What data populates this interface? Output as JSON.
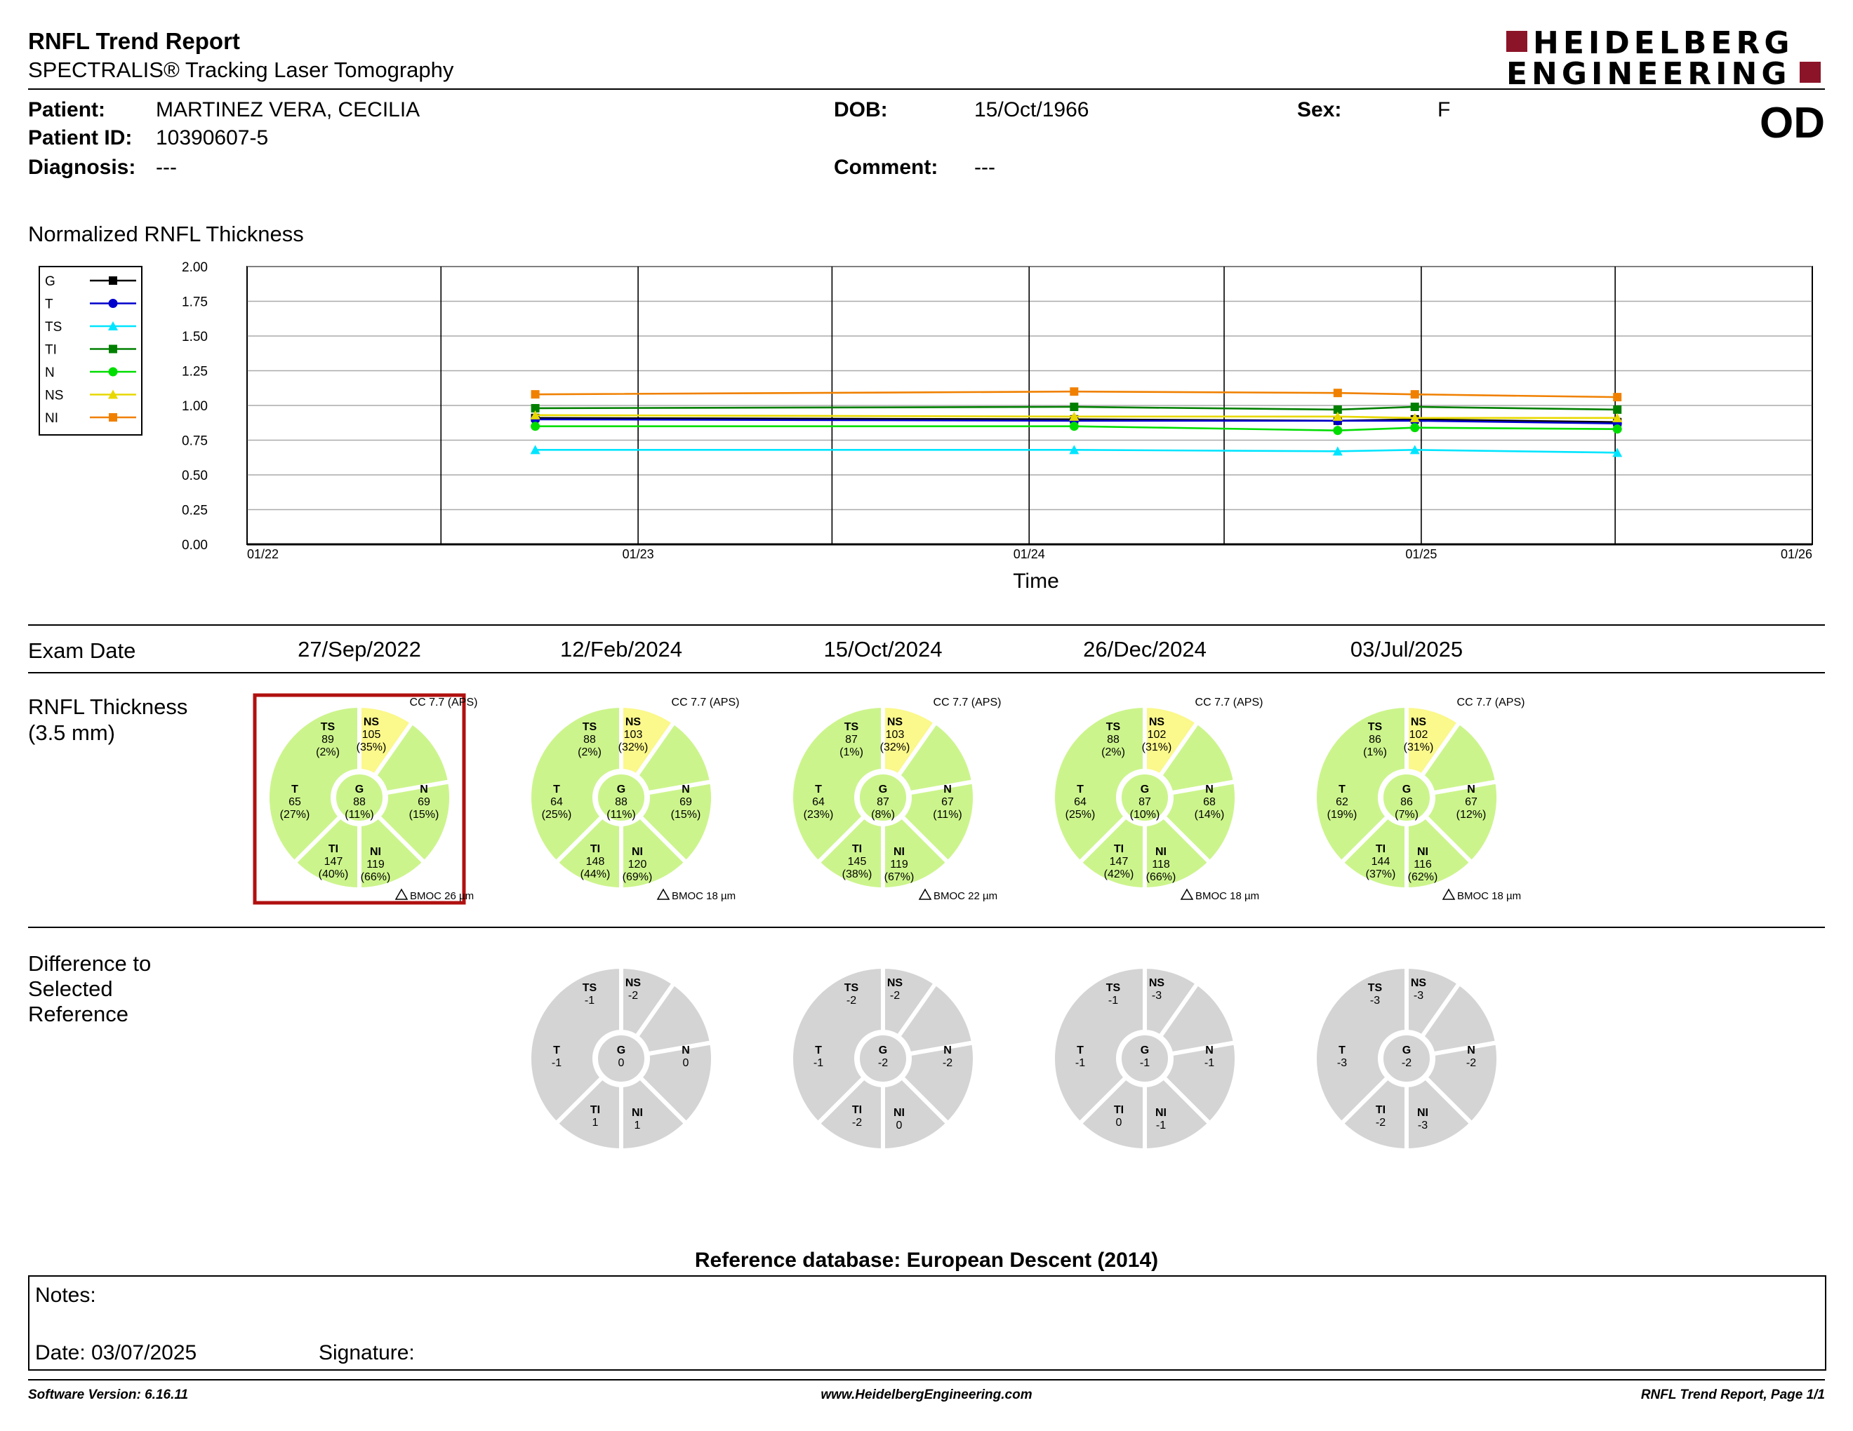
{
  "header": {
    "title": "RNFL Trend Report",
    "subtitle": "SPECTRALIS® Tracking Laser Tomography",
    "brand_line1": "HEIDELBERG",
    "brand_line2": "ENGINEERING",
    "eye": "OD"
  },
  "patient": {
    "name_label": "Patient:",
    "name": "MARTINEZ VERA, CECILIA",
    "id_label": "Patient ID:",
    "id": "10390607-5",
    "diagnosis_label": "Diagnosis:",
    "diagnosis": "---",
    "dob_label": "DOB:",
    "dob": "15/Oct/1966",
    "sex_label": "Sex:",
    "sex": "F",
    "comment_label": "Comment:",
    "comment": "---"
  },
  "chart_title": "Normalized RNFL Thickness",
  "chart_data": {
    "type": "line",
    "xlabel": "Time",
    "ylabel": "",
    "ylim": [
      0,
      2
    ],
    "yticks": [
      "0.00",
      "0.25",
      "0.50",
      "0.75",
      "1.00",
      "1.25",
      "1.50",
      "1.75",
      "2.00"
    ],
    "xticks": [
      "01/22",
      "01/23",
      "01/24",
      "01/25",
      "01/26"
    ],
    "x": [
      "27/Sep/2022",
      "12/Feb/2024",
      "15/Oct/2024",
      "26/Dec/2024",
      "03/Jul/2025"
    ],
    "legend_position": "left",
    "grid": true,
    "series": [
      {
        "name": "G",
        "color": "#000000",
        "marker": "square",
        "values": [
          0.91,
          0.9,
          0.89,
          0.9,
          0.88
        ]
      },
      {
        "name": "T",
        "color": "#0000cc",
        "marker": "circle",
        "values": [
          0.9,
          0.89,
          0.89,
          0.89,
          0.87
        ]
      },
      {
        "name": "TS",
        "color": "#00e5ff",
        "marker": "triangle",
        "values": [
          0.68,
          0.68,
          0.67,
          0.68,
          0.66
        ]
      },
      {
        "name": "TI",
        "color": "#008000",
        "marker": "square",
        "values": [
          0.98,
          0.99,
          0.97,
          0.99,
          0.97
        ]
      },
      {
        "name": "N",
        "color": "#00dd00",
        "marker": "circle",
        "values": [
          0.85,
          0.85,
          0.82,
          0.84,
          0.83
        ]
      },
      {
        "name": "NS",
        "color": "#e8d800",
        "marker": "triangle",
        "values": [
          0.93,
          0.92,
          0.92,
          0.91,
          0.91
        ]
      },
      {
        "name": "NI",
        "color": "#f08000",
        "marker": "square",
        "values": [
          1.08,
          1.1,
          1.09,
          1.08,
          1.06
        ]
      }
    ]
  },
  "exam": {
    "label": "Exam Date",
    "dates": [
      "27/Sep/2022",
      "12/Feb/2024",
      "15/Oct/2024",
      "26/Dec/2024",
      "03/Jul/2025"
    ]
  },
  "rnfl": {
    "label_line1": "RNFL Thickness",
    "label_line2": "(3.5 mm)",
    "colors": {
      "green": "#ccf48c",
      "yellow": "#fbf88c",
      "gray": "#d4d4d4",
      "reference_frame": "#b01010"
    },
    "exams": [
      {
        "cc": "CC 7.7 (APS)",
        "bmoc": "BMOC 26 µm",
        "TS": {
          "v": "89",
          "p": "(2%)",
          "c": "yellow"
        },
        "NS": {
          "v": "105",
          "p": "(35%)",
          "c": "green"
        },
        "T": {
          "v": "65",
          "p": "(27%)",
          "c": "green"
        },
        "G": {
          "v": "88",
          "p": "(11%)",
          "c": "green"
        },
        "N": {
          "v": "69",
          "p": "(15%)",
          "c": "green"
        },
        "TI": {
          "v": "147",
          "p": "(40%)",
          "c": "green"
        },
        "NI": {
          "v": "119",
          "p": "(66%)",
          "c": "green"
        }
      },
      {
        "cc": "CC 7.7 (APS)",
        "bmoc": "BMOC 18 µm",
        "TS": {
          "v": "88",
          "p": "(2%)",
          "c": "yellow"
        },
        "NS": {
          "v": "103",
          "p": "(32%)",
          "c": "green"
        },
        "T": {
          "v": "64",
          "p": "(25%)",
          "c": "green"
        },
        "G": {
          "v": "88",
          "p": "(11%)",
          "c": "green"
        },
        "N": {
          "v": "69",
          "p": "(15%)",
          "c": "green"
        },
        "TI": {
          "v": "148",
          "p": "(44%)",
          "c": "green"
        },
        "NI": {
          "v": "120",
          "p": "(69%)",
          "c": "green"
        }
      },
      {
        "cc": "CC 7.7 (APS)",
        "bmoc": "BMOC 22 µm",
        "TS": {
          "v": "87",
          "p": "(1%)",
          "c": "yellow"
        },
        "NS": {
          "v": "103",
          "p": "(32%)",
          "c": "green"
        },
        "T": {
          "v": "64",
          "p": "(23%)",
          "c": "green"
        },
        "G": {
          "v": "87",
          "p": "(8%)",
          "c": "green"
        },
        "N": {
          "v": "67",
          "p": "(11%)",
          "c": "green"
        },
        "TI": {
          "v": "145",
          "p": "(38%)",
          "c": "green"
        },
        "NI": {
          "v": "119",
          "p": "(67%)",
          "c": "green"
        }
      },
      {
        "cc": "CC 7.7 (APS)",
        "bmoc": "BMOC 18 µm",
        "TS": {
          "v": "88",
          "p": "(2%)",
          "c": "yellow"
        },
        "NS": {
          "v": "102",
          "p": "(31%)",
          "c": "green"
        },
        "T": {
          "v": "64",
          "p": "(25%)",
          "c": "green"
        },
        "G": {
          "v": "87",
          "p": "(10%)",
          "c": "green"
        },
        "N": {
          "v": "68",
          "p": "(14%)",
          "c": "green"
        },
        "TI": {
          "v": "147",
          "p": "(42%)",
          "c": "green"
        },
        "NI": {
          "v": "118",
          "p": "(66%)",
          "c": "green"
        }
      },
      {
        "cc": "CC 7.7 (APS)",
        "bmoc": "BMOC 18 µm",
        "TS": {
          "v": "86",
          "p": "(1%)",
          "c": "yellow"
        },
        "NS": {
          "v": "102",
          "p": "(31%)",
          "c": "green"
        },
        "T": {
          "v": "62",
          "p": "(19%)",
          "c": "green"
        },
        "G": {
          "v": "86",
          "p": "(7%)",
          "c": "green"
        },
        "N": {
          "v": "67",
          "p": "(12%)",
          "c": "green"
        },
        "TI": {
          "v": "144",
          "p": "(37%)",
          "c": "green"
        },
        "NI": {
          "v": "116",
          "p": "(62%)",
          "c": "green"
        }
      }
    ]
  },
  "difference": {
    "label_line1": "Difference to",
    "label_line2": "Selected",
    "label_line3": "Reference",
    "exams": [
      {
        "TS": "-1",
        "NS": "-2",
        "T": "-1",
        "G": "0",
        "N": "0",
        "TI": "1",
        "NI": "1"
      },
      {
        "TS": "-2",
        "NS": "-2",
        "T": "-1",
        "G": "-2",
        "N": "-2",
        "TI": "-2",
        "NI": "0"
      },
      {
        "TS": "-1",
        "NS": "-3",
        "T": "-1",
        "G": "-1",
        "N": "-1",
        "TI": "0",
        "NI": "-1"
      },
      {
        "TS": "-3",
        "NS": "-3",
        "T": "-3",
        "G": "-2",
        "N": "-2",
        "TI": "-2",
        "NI": "-3"
      }
    ]
  },
  "reference_db": "Reference database: European Descent (2014)",
  "notes": {
    "label": "Notes:",
    "date_label": "Date: 03/07/2025",
    "signature_label": "Signature:"
  },
  "footer": {
    "software": "Software Version: 6.16.11",
    "website": "www.HeidelbergEngineering.com",
    "page": "RNFL Trend Report, Page 1/1"
  }
}
